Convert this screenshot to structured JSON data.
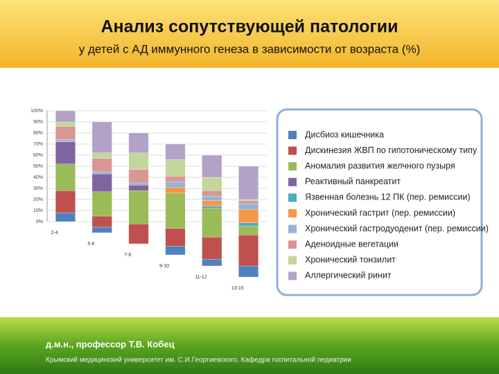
{
  "chart_data": {
    "type": "stacked_bar",
    "title": "Анализ сопутствующей патологии",
    "subtitle": "у детей с АД иммунного генеза в зависимости от возраста (%)",
    "categories": [
      "2-4",
      "5-6",
      "7-8",
      "9-10",
      "11-12",
      "13-15"
    ],
    "series": [
      {
        "name": "Дисбиоз кишечника",
        "color": "#4f81bd",
        "values": [
          8,
          5,
          0,
          8,
          6,
          10
        ]
      },
      {
        "name": "Дискинезия ЖВП по гипотоническому типу",
        "color": "#c0504d",
        "values": [
          20,
          10,
          18,
          16,
          20,
          28
        ]
      },
      {
        "name": "Аномалия развития желчного пузыря",
        "color": "#9bbb59",
        "values": [
          24,
          22,
          30,
          32,
          26,
          8
        ]
      },
      {
        "name": "Реактивный панкреатит",
        "color": "#8064a2",
        "values": [
          20,
          16,
          5,
          0,
          0,
          0
        ]
      },
      {
        "name": "Язвенная болезнь 12 ПК (пер. ремиссии)",
        "color": "#4bacc6",
        "values": [
          0,
          0,
          0,
          0,
          2,
          3
        ]
      },
      {
        "name": "Хронический гастрит (пер. ремиссии)",
        "color": "#f79646",
        "values": [
          0,
          0,
          0,
          5,
          5,
          12
        ]
      },
      {
        "name": "Хронический гастродуоденит (пер. ремиссии)",
        "color": "#95b3d7",
        "values": [
          2,
          2,
          2,
          5,
          4,
          5
        ]
      },
      {
        "name": "Аденоидные вегетации",
        "color": "#d99694",
        "values": [
          12,
          12,
          12,
          5,
          5,
          3
        ]
      },
      {
        "name": "Хронический тонзилит",
        "color": "#c3d69b",
        "values": [
          4,
          5,
          15,
          15,
          12,
          1
        ]
      },
      {
        "name": "Аллергический ринит",
        "color": "#b3a2c7",
        "values": [
          10,
          28,
          18,
          14,
          20,
          30
        ]
      }
    ],
    "ylim": [
      0,
      100
    ],
    "yticks": [
      {
        "value": 0,
        "label": "0%"
      },
      {
        "value": 10,
        "label": "10%"
      },
      {
        "value": 20,
        "label": "20%"
      },
      {
        "value": 30,
        "label": "30%"
      },
      {
        "value": 40,
        "label": "40%"
      },
      {
        "value": 50,
        "label": "50%"
      },
      {
        "value": 60,
        "label": "60%"
      },
      {
        "value": 70,
        "label": "70%"
      },
      {
        "value": 80,
        "label": "80%"
      },
      {
        "value": 90,
        "label": "90%"
      },
      {
        "value": 100,
        "label": "100%"
      }
    ],
    "grid": true
  },
  "footer": {
    "author": "д.м.н., профессор Т.В. Кобец",
    "affiliation": "Крымский медицинский университет им. С.И.Георгиевского.   Кафедра госпитальной педиатрии"
  }
}
